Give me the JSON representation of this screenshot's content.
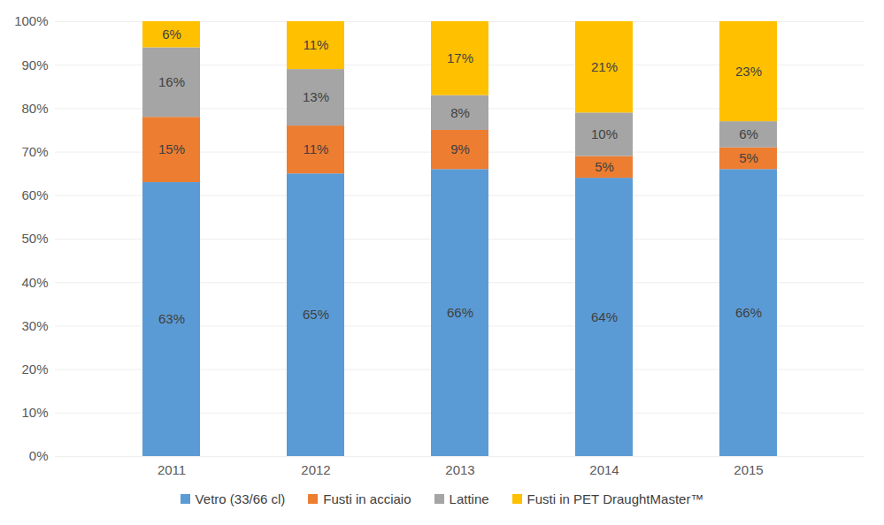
{
  "chart_data": {
    "type": "bar",
    "stacked": true,
    "categories": [
      "2011",
      "2012",
      "2013",
      "2014",
      "2015"
    ],
    "series": [
      {
        "name": "Vetro (33/66 cl)",
        "color": "#5b9bd5",
        "values": [
          63,
          65,
          66,
          64,
          66
        ],
        "value_labels": [
          "63%",
          "65%",
          "66%",
          "64%",
          "66%"
        ]
      },
      {
        "name": "Fusti in acciaio",
        "color": "#ed7d31",
        "values": [
          15,
          11,
          9,
          5,
          5
        ],
        "value_labels": [
          "15%",
          "11%",
          "9%",
          "5%",
          "5%"
        ]
      },
      {
        "name": "Lattine",
        "color": "#a5a5a5",
        "values": [
          16,
          13,
          8,
          10,
          6
        ],
        "value_labels": [
          "16%",
          "13%",
          "8%",
          "10%",
          "6%"
        ]
      },
      {
        "name": "Fusti in PET DraughtMaster™",
        "color": "#ffc000",
        "values": [
          6,
          11,
          17,
          21,
          23
        ],
        "value_labels": [
          "6%",
          "11%",
          "17%",
          "21%",
          "23%"
        ]
      }
    ],
    "ylim": [
      0,
      100
    ],
    "yticks": [
      {
        "value": 0,
        "label": "0%"
      },
      {
        "value": 10,
        "label": "10%"
      },
      {
        "value": 20,
        "label": "20%"
      },
      {
        "value": 30,
        "label": "30%"
      },
      {
        "value": 40,
        "label": "40%"
      },
      {
        "value": 50,
        "label": "50%"
      },
      {
        "value": 60,
        "label": "60%"
      },
      {
        "value": 70,
        "label": "70%"
      },
      {
        "value": 80,
        "label": "80%"
      },
      {
        "value": 90,
        "label": "90%"
      },
      {
        "value": 100,
        "label": "100%"
      }
    ],
    "grid": true,
    "data_labels": true,
    "legend": "bottom"
  }
}
